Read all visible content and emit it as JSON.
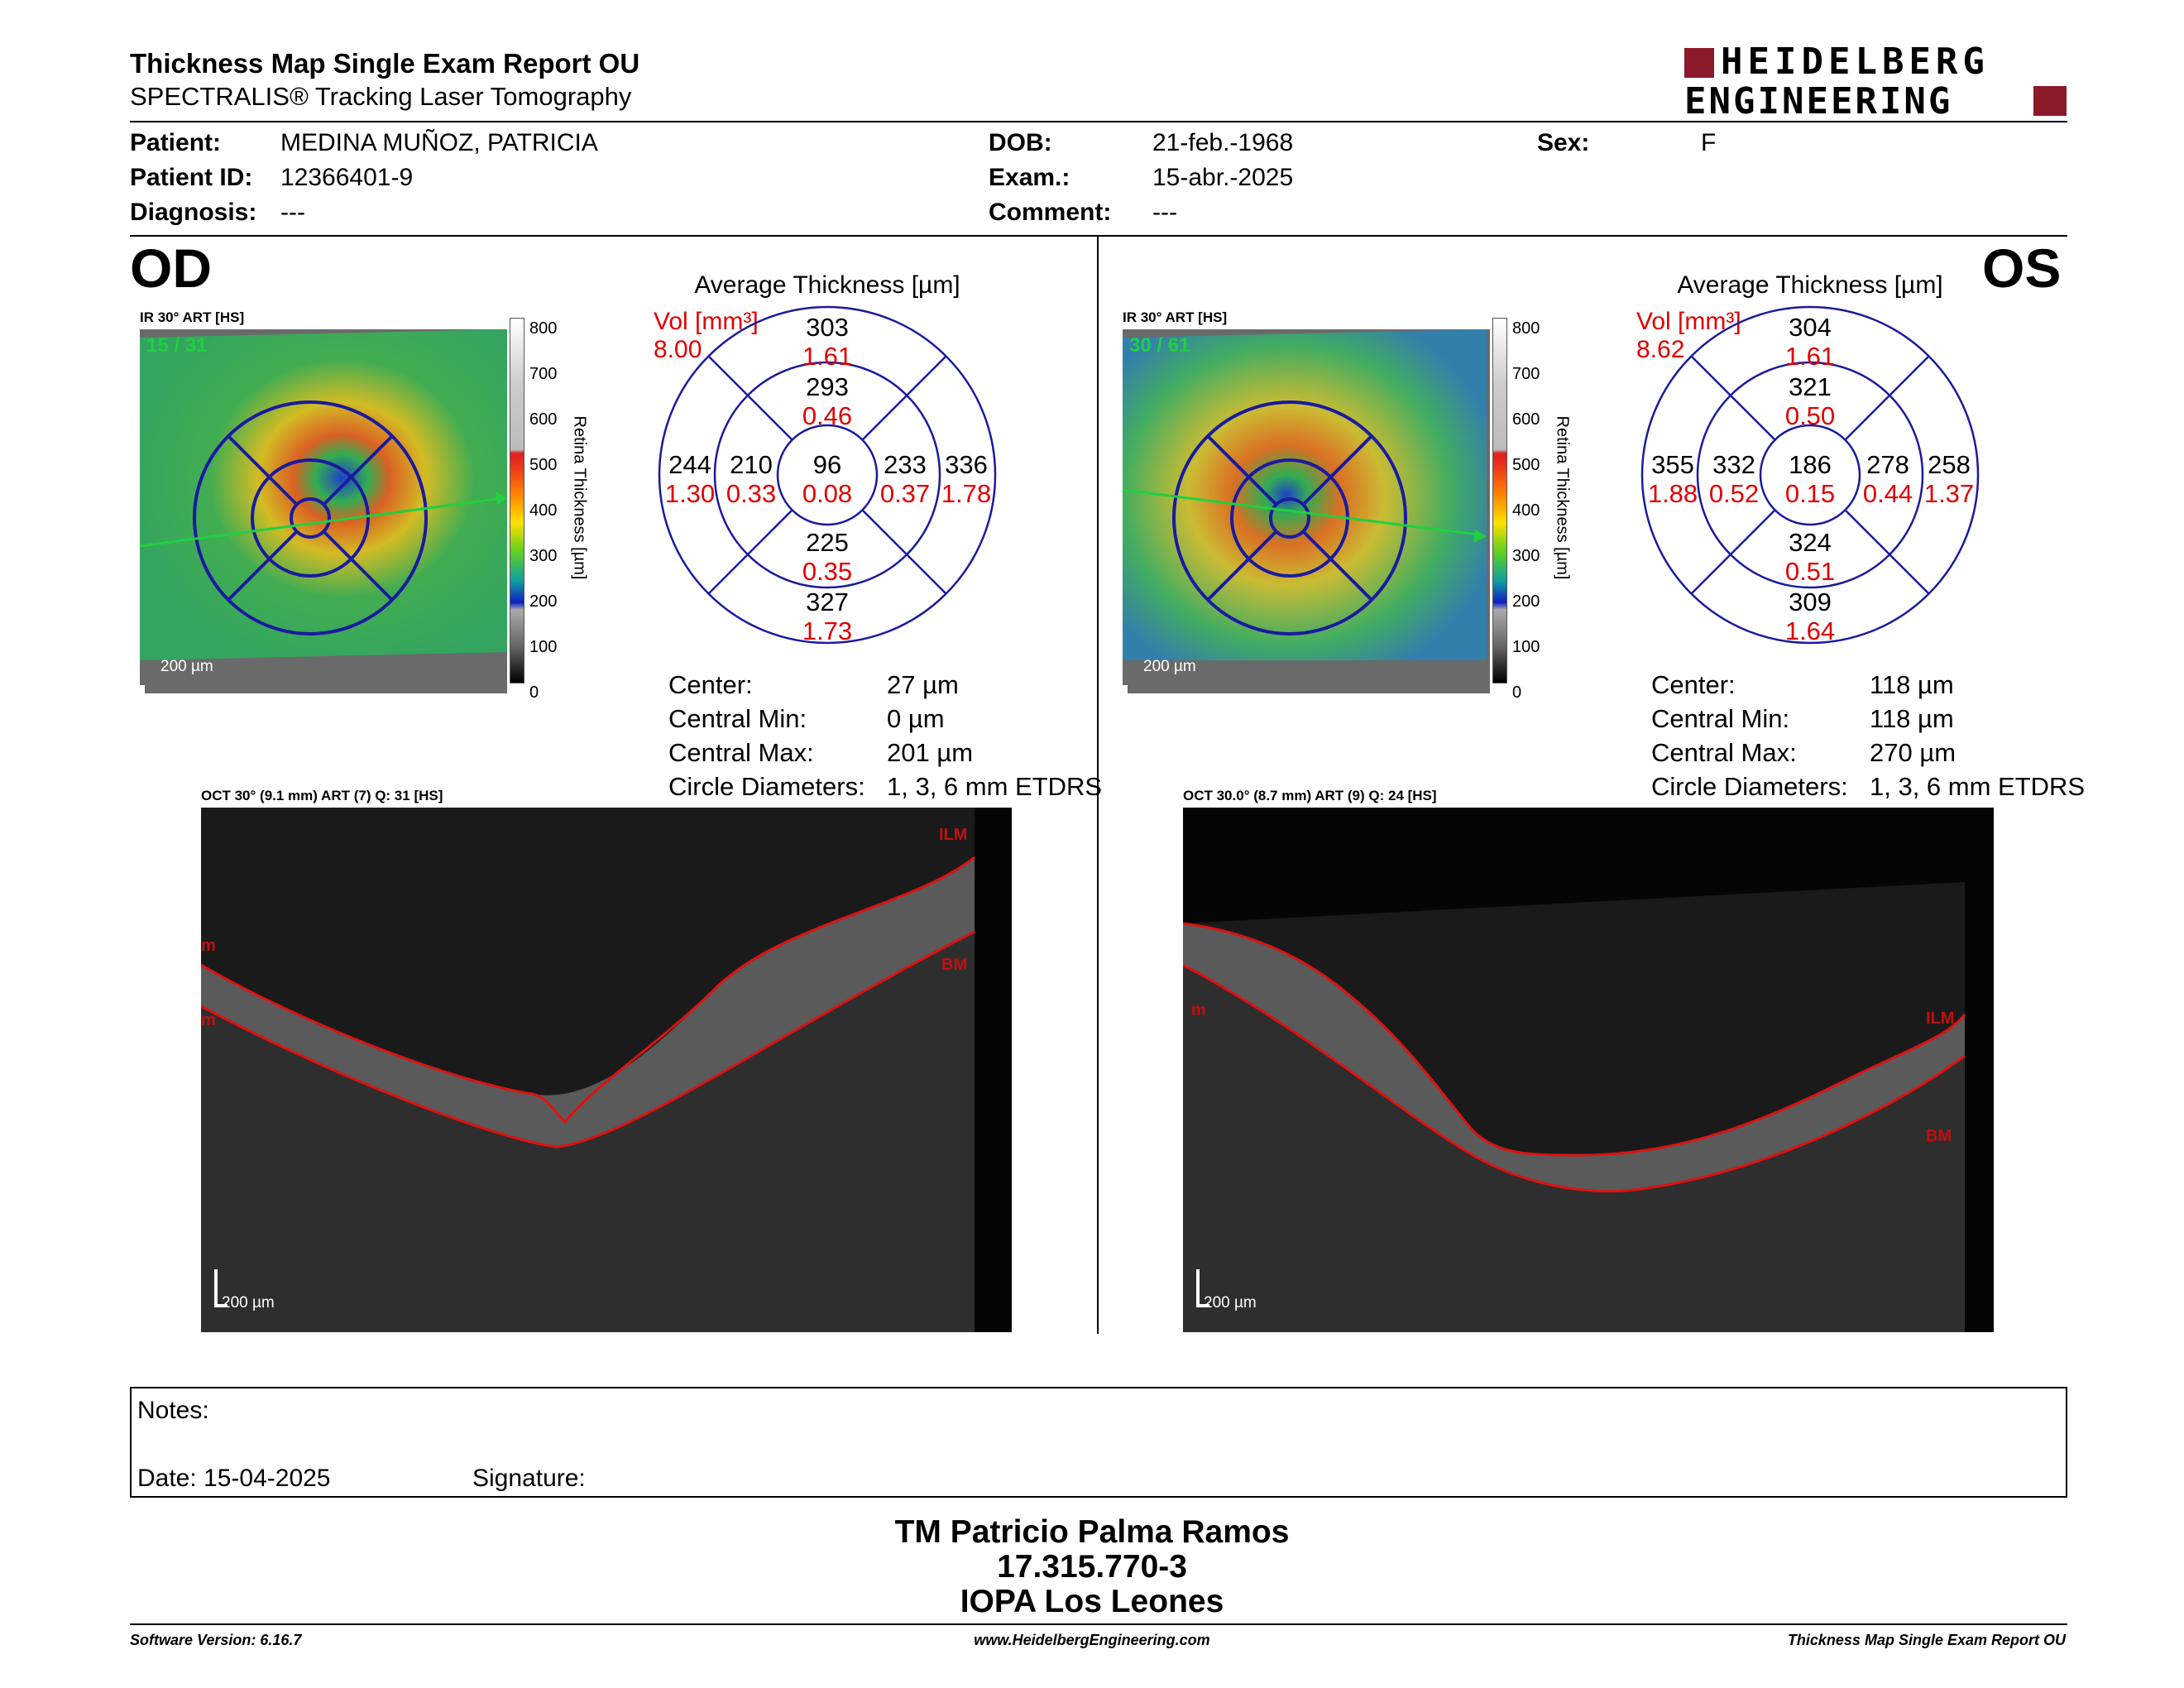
{
  "header": {
    "title": "Thickness Map Single Exam Report OU",
    "subtitle": "SPECTRALIS® Tracking Laser Tomography",
    "logo_line1": "HEIDELBERG",
    "logo_line2": "ENGINEERING",
    "brand_color": "#8b1a2b"
  },
  "patient": {
    "patient_label": "Patient:",
    "patient_value": "MEDINA MUÑOZ, PATRICIA",
    "id_label": "Patient ID:",
    "id_value": "12366401-9",
    "diagnosis_label": "Diagnosis:",
    "diagnosis_value": "---",
    "dob_label": "DOB:",
    "dob_value": "21-feb.-1968",
    "exam_label": "Exam.:",
    "exam_value": "15-abr.-2025",
    "comment_label": "Comment:",
    "comment_value": "---",
    "sex_label": "Sex:",
    "sex_value": "F"
  },
  "od": {
    "eye": "OD",
    "ir_label": "IR 30° ART [HS]",
    "frame": "15 / 31",
    "scale": "200 µm",
    "thickness_title": "Average Thickness [µm]",
    "vol_label": "Vol [mm³]",
    "vol_total": "8.00",
    "sectors": {
      "center": {
        "t": "96",
        "v": "0.08"
      },
      "inner_sup": {
        "t": "293",
        "v": "0.46"
      },
      "inner_inf": {
        "t": "225",
        "v": "0.35"
      },
      "inner_temp": {
        "t": "210",
        "v": "0.33"
      },
      "inner_nasal": {
        "t": "233",
        "v": "0.37"
      },
      "outer_sup": {
        "t": "303",
        "v": "1.61"
      },
      "outer_inf": {
        "t": "327",
        "v": "1.73"
      },
      "outer_temp": {
        "t": "244",
        "v": "1.30"
      },
      "outer_nasal": {
        "t": "336",
        "v": "1.78"
      }
    },
    "stats": {
      "center_label": "Center:",
      "center_value": "27 µm",
      "min_label": "Central Min:",
      "min_value": "0 µm",
      "max_label": "Central Max:",
      "max_value": "201 µm",
      "diam_label": "Circle Diameters:",
      "diam_value": "1, 3, 6 mm ETDRS"
    },
    "oct_label": "OCT 30° (9.1 mm) ART (7) Q: 31 [HS]",
    "ilm": "ILM",
    "bm": "BM",
    "edge_m": "m",
    "oct_scale": "200 µm"
  },
  "os": {
    "eye": "OS",
    "ir_label": "IR 30° ART [HS]",
    "frame": "30 / 61",
    "scale": "200 µm",
    "thickness_title": "Average Thickness [µm]",
    "vol_label": "Vol [mm³]",
    "vol_total": "8.62",
    "sectors": {
      "center": {
        "t": "186",
        "v": "0.15"
      },
      "inner_sup": {
        "t": "321",
        "v": "0.50"
      },
      "inner_inf": {
        "t": "324",
        "v": "0.51"
      },
      "inner_temp": {
        "t": "332",
        "v": "0.52"
      },
      "inner_nasal": {
        "t": "278",
        "v": "0.44"
      },
      "outer_sup": {
        "t": "304",
        "v": "1.61"
      },
      "outer_inf": {
        "t": "309",
        "v": "1.64"
      },
      "outer_temp": {
        "t": "355",
        "v": "1.88"
      },
      "outer_nasal": {
        "t": "258",
        "v": "1.37"
      }
    },
    "stats": {
      "center_label": "Center:",
      "center_value": "118 µm",
      "min_label": "Central Min:",
      "min_value": "118 µm",
      "max_label": "Central Max:",
      "max_value": "270 µm",
      "diam_label": "Circle Diameters:",
      "diam_value": "1, 3, 6 mm ETDRS"
    },
    "oct_label": "OCT 30.0° (8.7 mm) ART (9) Q: 24 [HS]",
    "ilm": "ILM",
    "bm": "BM",
    "edge_m": "m",
    "oct_scale": "200 µm"
  },
  "colorbar": {
    "ticks": [
      "800",
      "700",
      "600",
      "500",
      "400",
      "300",
      "200",
      "100",
      "0"
    ],
    "label": "Retina Thickness [µm]"
  },
  "notes": {
    "notes_label": "Notes:",
    "date_label": "Date: 15-04-2025",
    "signature_label": "Signature:"
  },
  "signature": {
    "name": "TM Patricio Palma Ramos",
    "rut": "17.315.770-3",
    "clinic": "IOPA Los Leones"
  },
  "footer": {
    "software": "Software Version: 6.16.7",
    "website": "www.HeidelbergEngineering.com",
    "report": "Thickness Map Single Exam Report OU"
  },
  "colors": {
    "volume_red": "#e00000",
    "grid_blue": "#1a1aa0",
    "oct_line_red": "#e01010",
    "scan_line_green": "#20d040"
  }
}
